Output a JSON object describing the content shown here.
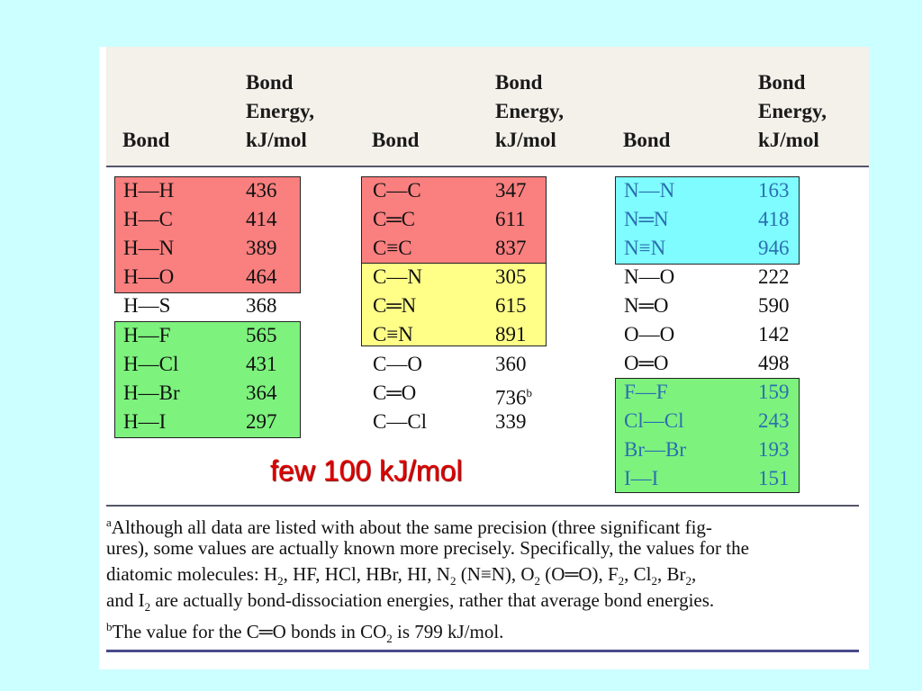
{
  "headers": {
    "bond": "Bond",
    "energy": "Bond\nEnergy,\nkJ/mol"
  },
  "columns": [
    [
      {
        "bond": "H—H",
        "energy": "436"
      },
      {
        "bond": "H—C",
        "energy": "414"
      },
      {
        "bond": "H—N",
        "energy": "389"
      },
      {
        "bond": "H—O",
        "energy": "464"
      },
      {
        "bond": "H—S",
        "energy": "368"
      },
      {
        "bond": "H—F",
        "energy": "565"
      },
      {
        "bond": "H—Cl",
        "energy": "431"
      },
      {
        "bond": "H—Br",
        "energy": "364"
      },
      {
        "bond": "H—I",
        "energy": "297"
      }
    ],
    [
      {
        "bond": "C—C",
        "energy": "347"
      },
      {
        "bond": "C═C",
        "energy": "611"
      },
      {
        "bond": "C≡C",
        "energy": "837"
      },
      {
        "bond": "C—N",
        "energy": "305"
      },
      {
        "bond": "C═N",
        "energy": "615"
      },
      {
        "bond": "C≡N",
        "energy": "891"
      },
      {
        "bond": "C—O",
        "energy": "360"
      },
      {
        "bond": "C═O",
        "energy": "736",
        "note": "b"
      },
      {
        "bond": "C—Cl",
        "energy": "339"
      }
    ],
    [
      {
        "bond": "N—N",
        "energy": "163"
      },
      {
        "bond": "N═N",
        "energy": "418"
      },
      {
        "bond": "N≡N",
        "energy": "946"
      },
      {
        "bond": "N—O",
        "energy": "222"
      },
      {
        "bond": "N═O",
        "energy": "590"
      },
      {
        "bond": "O—O",
        "energy": "142"
      },
      {
        "bond": "O═O",
        "energy": "498"
      },
      {
        "bond": "F—F",
        "energy": "159"
      },
      {
        "bond": "Cl—Cl",
        "energy": "243"
      },
      {
        "bond": "Br—Br",
        "energy": "193"
      },
      {
        "bond": "I—I",
        "energy": "151"
      }
    ]
  ],
  "highlight_colors": {
    "red": "#fa7f7f",
    "yellow": "#ffff88",
    "green": "#7df27d",
    "cyan": "#7ffcff"
  },
  "callout": "few 100 kJ/mol",
  "footnotes": {
    "a_marker": "a",
    "a_line1": "Although all data are listed with about the same precision (three significant fig-",
    "a_line2": "ures), some values are actually known more precisely. Specifically, the values for the",
    "a_line3_pre": "diatomic molecules: H",
    "a_line3_rest1": ", HF, HCl, HBr, HI, N",
    "a_line3_rest2": " (N≡N), O",
    "a_line3_rest3": " (O═O), F",
    "a_line3_rest4": ", Cl",
    "a_line3_rest5": ", Br",
    "a_line3_end": ",",
    "a_line4_pre": "and I",
    "a_line4_rest": " are actually bond-dissociation energies, rather that average bond energies.",
    "sub2": "2",
    "b_marker": "b",
    "b_line_pre": "The value for the C═O bonds in CO",
    "b_line_rest": " is 799 kJ/mol."
  }
}
